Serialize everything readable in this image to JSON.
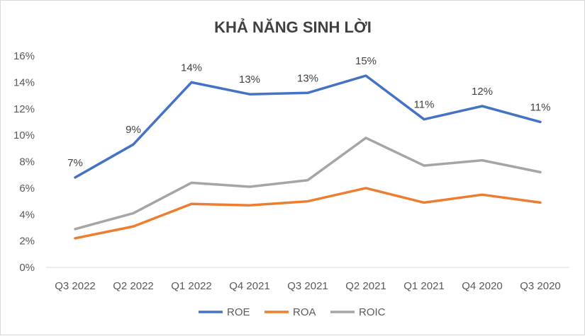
{
  "chart_data": {
    "type": "line",
    "title": "KHẢ NĂNG SINH LỜI",
    "xlabel": "",
    "ylabel": "",
    "ylim": [
      0,
      16
    ],
    "y_ticks": [
      0,
      2,
      4,
      6,
      8,
      10,
      12,
      14,
      16
    ],
    "y_tick_labels": [
      "0%",
      "2%",
      "4%",
      "6%",
      "8%",
      "10%",
      "12%",
      "14%",
      "16%"
    ],
    "grid": false,
    "legend_position": "bottom",
    "categories": [
      "Q3 2022",
      "Q2 2022",
      "Q1 2022",
      "Q4 2021",
      "Q3 2021",
      "Q2 2021",
      "Q1 2021",
      "Q4 2020",
      "Q3 2020"
    ],
    "series": [
      {
        "name": "ROE",
        "color": "#4472c4",
        "values": [
          6.8,
          9.3,
          14.0,
          13.1,
          13.2,
          14.5,
          11.2,
          12.2,
          11.0
        ],
        "data_labels": [
          "7%",
          "9%",
          "14%",
          "13%",
          "13%",
          "15%",
          "11%",
          "12%",
          "11%"
        ]
      },
      {
        "name": "ROA",
        "color": "#ed7d31",
        "values": [
          2.2,
          3.1,
          4.8,
          4.7,
          5.0,
          6.0,
          4.9,
          5.5,
          4.9
        ]
      },
      {
        "name": "ROIC",
        "color": "#a5a5a5",
        "values": [
          2.9,
          4.1,
          6.4,
          6.1,
          6.6,
          9.8,
          7.7,
          8.1,
          7.2
        ]
      }
    ]
  }
}
